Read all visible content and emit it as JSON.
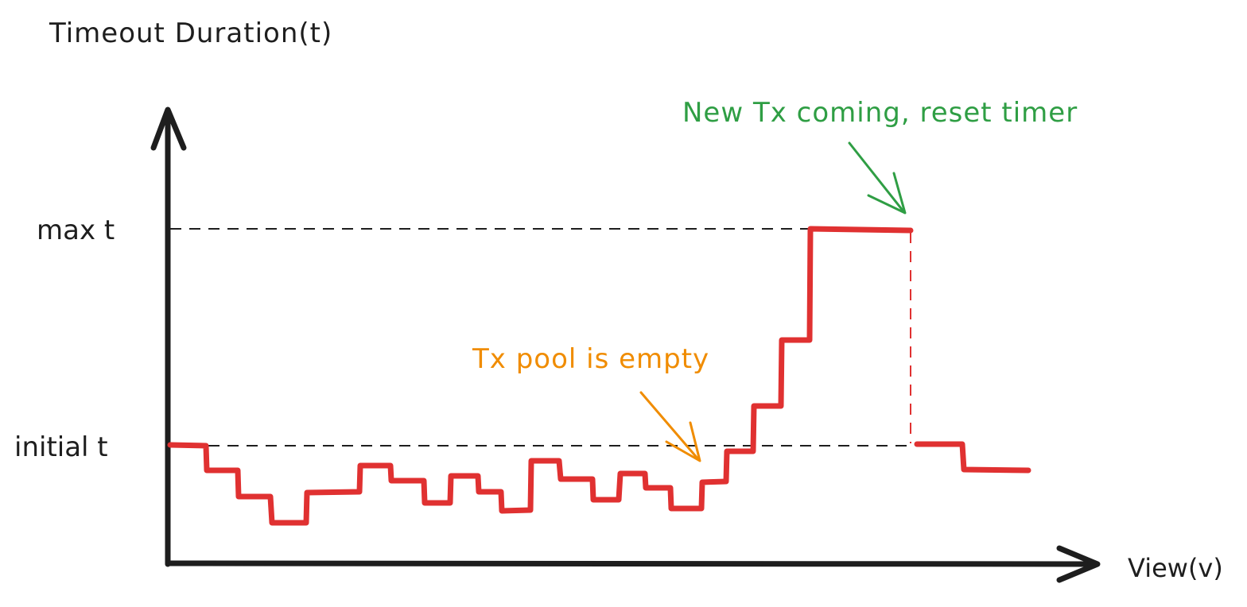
{
  "labels": {
    "y_axis": "Timeout Duration(t)",
    "x_axis": "View(v)",
    "max_t": "max t",
    "initial_t": "initial t"
  },
  "annotations": {
    "new_tx": "New Tx coming, reset timer",
    "pool_empty": "Tx pool is empty"
  },
  "colors": {
    "axis": "#1e1e1e",
    "series": "#e03131",
    "note_green": "#2f9e44",
    "note_orange": "#f08c00"
  }
}
